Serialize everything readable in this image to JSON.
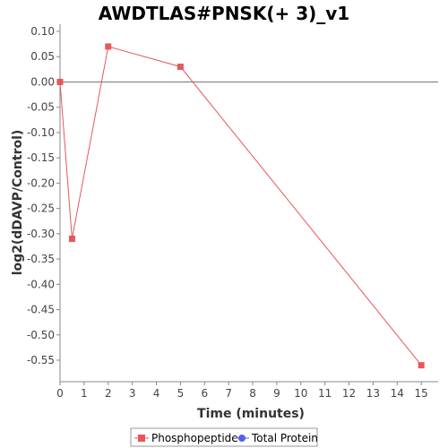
{
  "chart_data": {
    "type": "line",
    "title": "AWDTLAS#PNSK(+ 3)_v1",
    "xlabel": "Time (minutes)",
    "ylabel": "log2(dDAVP/Control)",
    "xlim": [
      0,
      15.7
    ],
    "ylim": [
      -0.6,
      0.1
    ],
    "xticks": [
      0,
      1,
      2,
      3,
      4,
      5,
      6,
      7,
      8,
      9,
      10,
      11,
      12,
      13,
      14,
      15
    ],
    "yticks": [
      0.1,
      0.05,
      0.0,
      -0.05,
      -0.1,
      -0.15,
      -0.2,
      -0.25,
      -0.3,
      -0.35,
      -0.4,
      -0.45,
      -0.5,
      -0.55
    ],
    "xtick_labels": [
      "0",
      "1",
      "2",
      "3",
      "4",
      "5",
      "6",
      "7",
      "8",
      "9",
      "10",
      "11",
      "12",
      "13",
      "14",
      "15"
    ],
    "ytick_labels": [
      "0.10",
      "0.05",
      "0.00",
      "-0.05",
      "-0.10",
      "-0.15",
      "-0.20",
      "-0.25",
      "-0.30",
      "-0.35",
      "-0.40",
      "-0.45",
      "-0.50",
      "-0.55"
    ],
    "zero_line": true,
    "grid": false,
    "legend_position": "bottom-center",
    "series": [
      {
        "name": "Phosphopeptide",
        "color": "#e8565b",
        "marker": "square",
        "x": [
          0,
          0.5,
          2,
          5,
          15
        ],
        "y": [
          0.0,
          -0.31,
          0.07,
          0.03,
          -0.56
        ]
      },
      {
        "name": "Total Protein",
        "color": "#5560e8",
        "marker": "circle",
        "x": [],
        "y": []
      }
    ]
  }
}
